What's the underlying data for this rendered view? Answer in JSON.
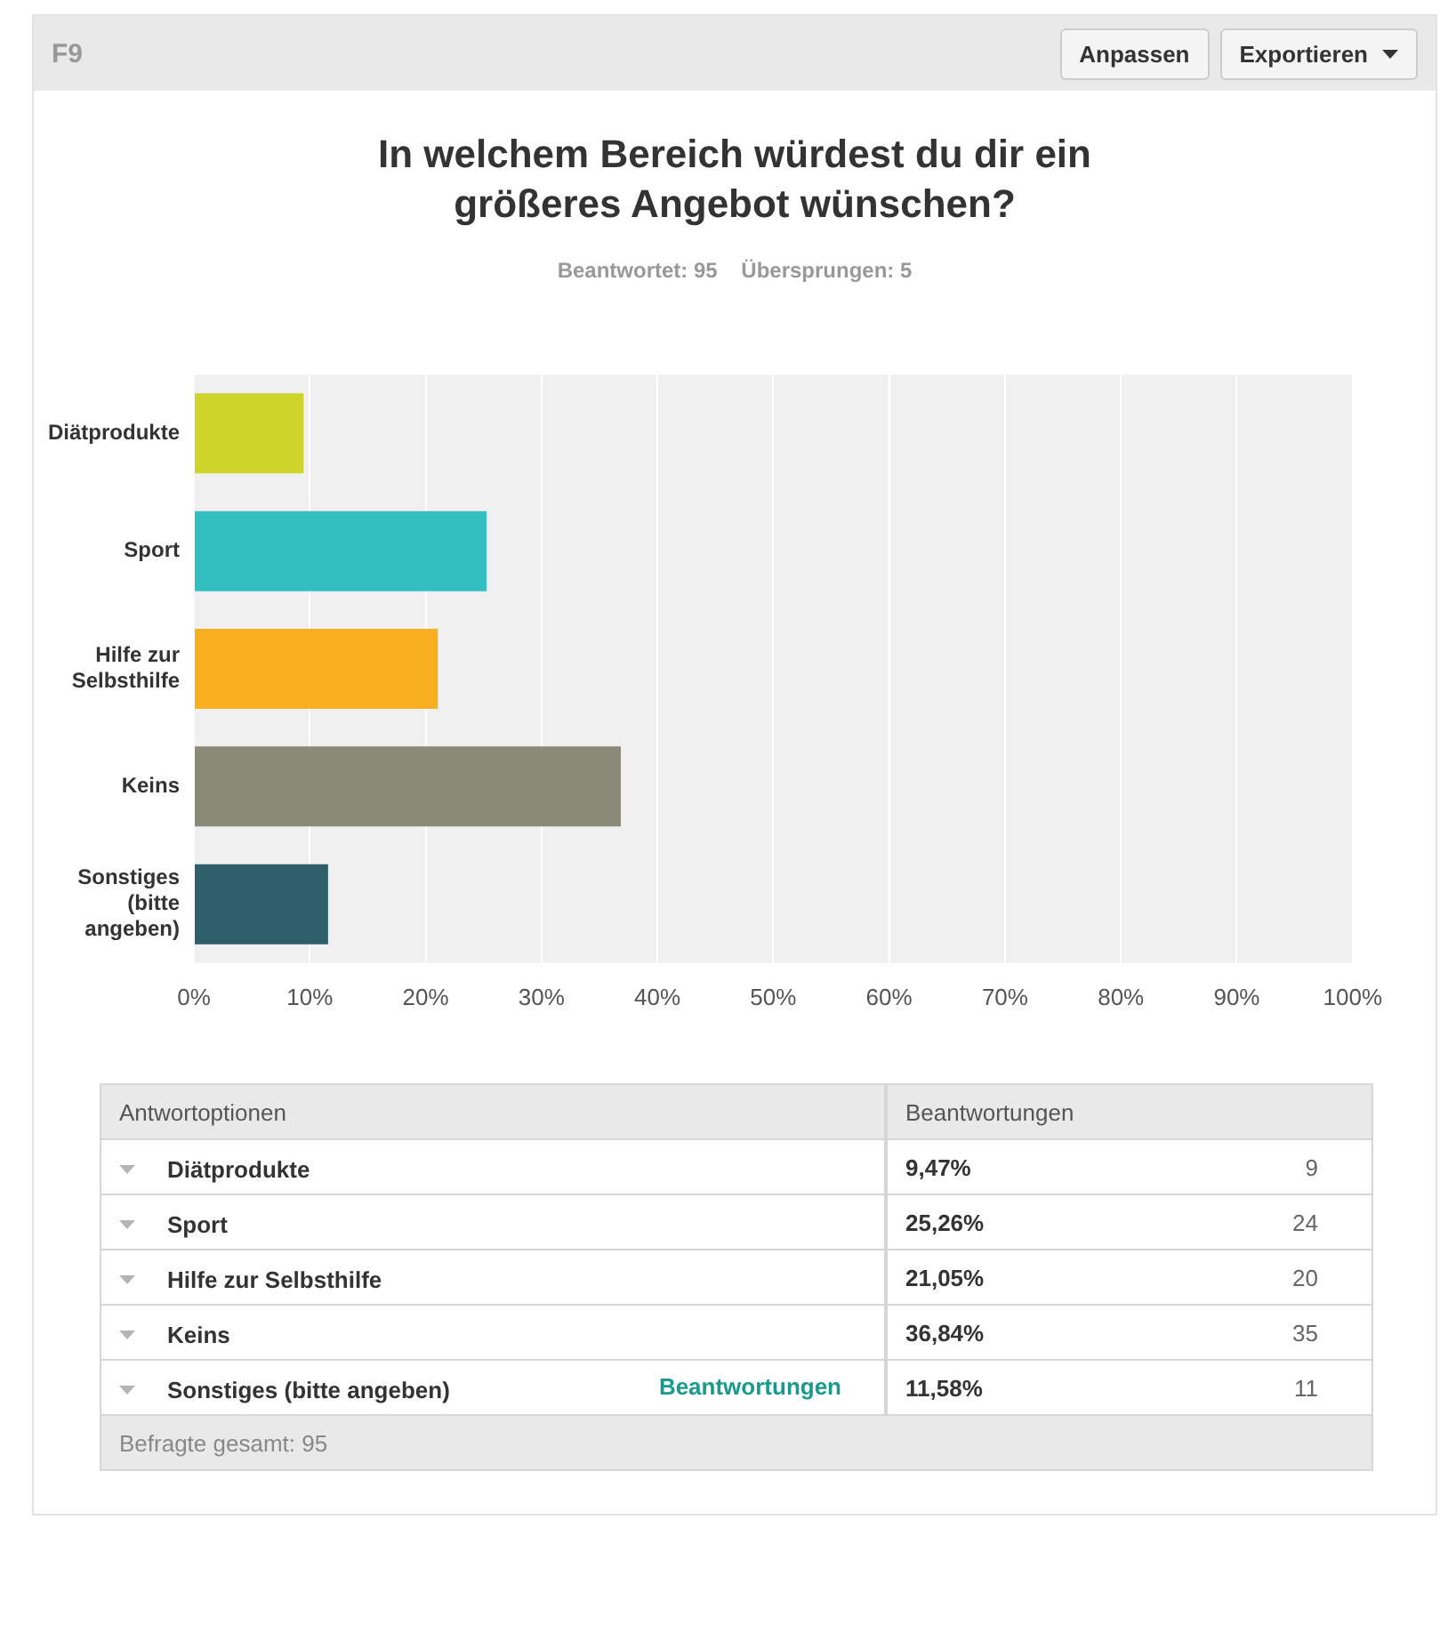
{
  "chart_data": {
    "type": "bar",
    "orientation": "horizontal",
    "title": "In welchem Bereich würdest du dir ein größeres Angebot wünschen?",
    "subtitle": "Beantwortet: 95    Übersprungen: 5",
    "categories": [
      "Diätprodukte",
      "Sport",
      "Hilfe zur Selbsthilfe",
      "Keins",
      "Sonstiges (bitte angeben)"
    ],
    "values": [
      9.47,
      25.26,
      21.05,
      36.84,
      11.58
    ],
    "colors": [
      "#cdd42a",
      "#33bec0",
      "#f7ae1f",
      "#8a8a78",
      "#2e5e6a"
    ],
    "xlim": [
      0,
      100
    ],
    "xticks": [
      {
        "value": 0,
        "label": "0%"
      },
      {
        "value": 10,
        "label": "10%"
      },
      {
        "value": 20,
        "label": "20%"
      },
      {
        "value": 30,
        "label": "30%"
      },
      {
        "value": 40,
        "label": "40%"
      },
      {
        "value": 50,
        "label": "50%"
      },
      {
        "value": 60,
        "label": "60%"
      },
      {
        "value": 70,
        "label": "70%"
      },
      {
        "value": 80,
        "label": "80%"
      },
      {
        "value": 90,
        "label": "90%"
      },
      {
        "value": 100,
        "label": "100%"
      }
    ],
    "grid": "x",
    "legend": false,
    "annotations": [
      "F9",
      "Anpassen",
      "Exportieren",
      "Antwortoptionen",
      "Beantwortungen",
      "9,47%",
      "25,26%",
      "21,05%",
      "36,84%",
      "11,58%",
      "9",
      "24",
      "20",
      "35",
      "11",
      "Beantwortungen",
      "Befragte gesamt: 95"
    ]
  }
}
